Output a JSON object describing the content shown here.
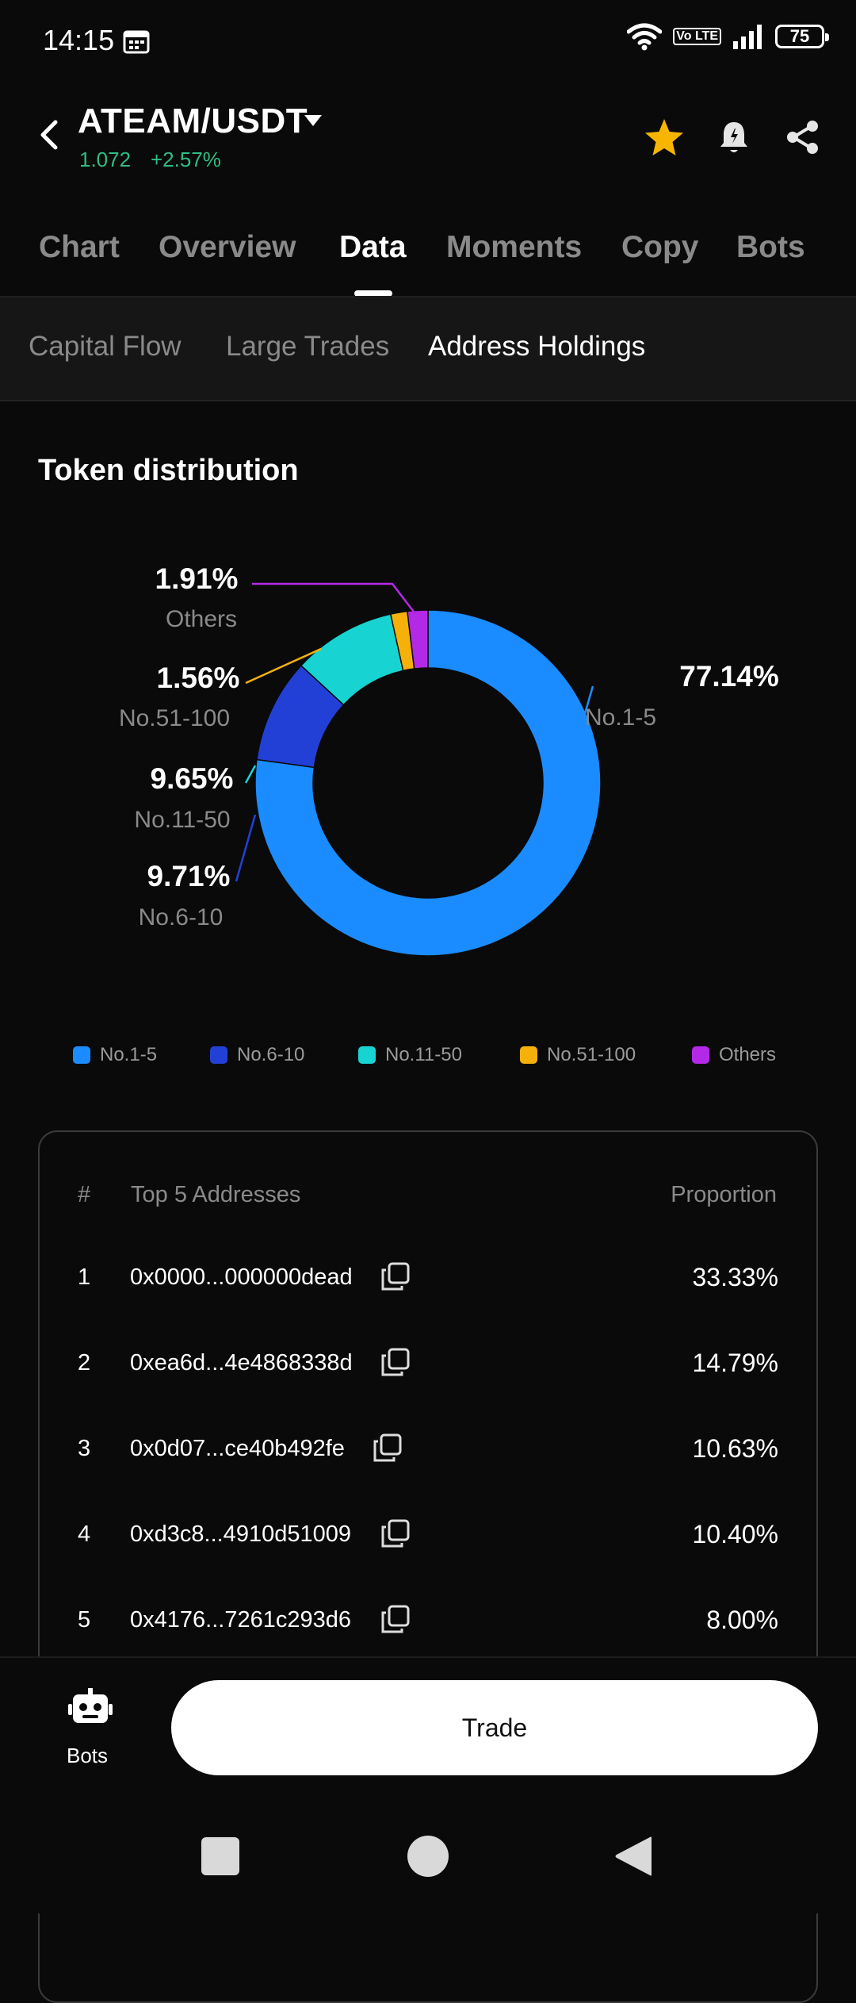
{
  "status_bar": {
    "time": "14:15",
    "battery": "75",
    "network_badge": "Vo LTE"
  },
  "header": {
    "pair": "ATEAM/USDT",
    "price": "1.072",
    "change": "+2.57%",
    "price_color": "#2fbd85",
    "star_color": "#f7b500"
  },
  "tabs": [
    {
      "label": "Chart",
      "active": false
    },
    {
      "label": "Overview",
      "active": false
    },
    {
      "label": "Data",
      "active": true
    },
    {
      "label": "Moments",
      "active": false
    },
    {
      "label": "Copy",
      "active": false
    },
    {
      "label": "Bots",
      "active": false
    }
  ],
  "subtabs": [
    {
      "label": "Capital Flow",
      "active": false
    },
    {
      "label": "Large Trades",
      "active": false
    },
    {
      "label": "Address Holdings",
      "active": true
    }
  ],
  "section_title": "Token distribution",
  "chart_data": {
    "type": "pie",
    "title": "Token distribution",
    "donut": true,
    "categories": [
      "No.1-5",
      "No.6-10",
      "No.11-50",
      "No.51-100",
      "Others"
    ],
    "values": [
      77.14,
      9.71,
      9.65,
      1.56,
      1.91
    ],
    "labels": [
      "77.14%",
      "9.71%",
      "9.65%",
      "1.56%",
      "1.91%"
    ],
    "colors": [
      "#1a8cff",
      "#2340d6",
      "#17d4d2",
      "#f5b10a",
      "#b428e8"
    ],
    "legend": "bottom"
  },
  "table": {
    "col_num": "#",
    "col_address": "Top 5 Addresses",
    "col_proportion": "Proportion",
    "rows": [
      {
        "num": "1",
        "address": "0x0000...000000dead",
        "proportion": "33.33%"
      },
      {
        "num": "2",
        "address": "0xea6d...4e4868338d",
        "proportion": "14.79%"
      },
      {
        "num": "3",
        "address": "0x0d07...ce40b492fe",
        "proportion": "10.63%"
      },
      {
        "num": "4",
        "address": "0xd3c8...4910d51009",
        "proportion": "10.40%"
      },
      {
        "num": "5",
        "address": "0x4176...7261c293d6",
        "proportion": "8.00%"
      }
    ]
  },
  "bottom": {
    "bots_label": "Bots",
    "trade_label": "Trade"
  }
}
